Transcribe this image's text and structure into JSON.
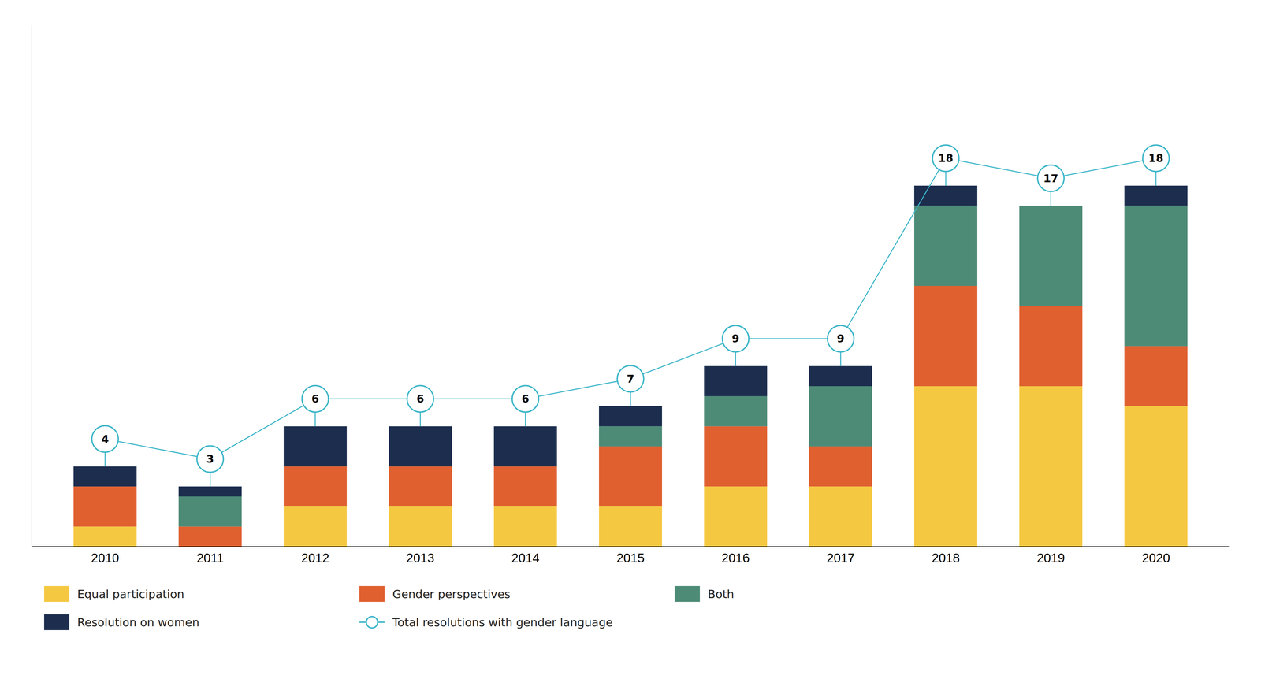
{
  "chart_data": {
    "type": "bar",
    "stacked": true,
    "categories": [
      2010,
      2011,
      2012,
      2013,
      2014,
      2015,
      2016,
      2017,
      2018,
      2019,
      2020
    ],
    "series": [
      {
        "name": "Equal participation",
        "color": "#F5C842",
        "values": [
          1,
          0,
          2,
          2,
          2,
          2,
          3,
          3,
          8,
          8,
          7
        ]
      },
      {
        "name": "Gender perspectives",
        "color": "#E06030",
        "values": [
          2,
          1,
          2,
          2,
          2,
          3,
          3,
          2,
          5,
          4,
          3
        ]
      },
      {
        "name": "Both",
        "color": "#4D8B77",
        "values": [
          0,
          1.5,
          0,
          0,
          0,
          1,
          1.5,
          3,
          4,
          5,
          7
        ]
      },
      {
        "name": "Resolution on women",
        "color": "#1C2D4E",
        "values": [
          1,
          0.5,
          2,
          2,
          2,
          1,
          1.5,
          1,
          1,
          0,
          1
        ]
      },
      {
        "name": "Total resolutions with gender language",
        "type": "line",
        "color": "#3BB5C8",
        "marker": "circle",
        "line_style": "solid",
        "data_labels": true,
        "values": [
          4,
          3,
          6,
          6,
          6,
          7,
          9,
          9,
          18,
          17,
          18
        ]
      }
    ],
    "ylim": [
      0,
      26
    ],
    "tick_labels": "x",
    "legend": "bottom",
    "grid": false
  }
}
